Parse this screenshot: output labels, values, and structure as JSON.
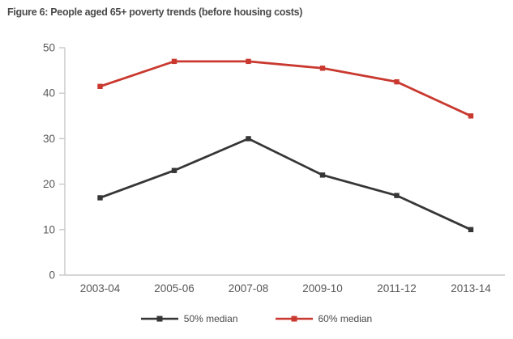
{
  "figure": {
    "title": "Figure 6: People aged 65+ poverty trends (before housing costs)"
  },
  "colors": {
    "axis": "#c8c8c8",
    "tick_label": "#58585a",
    "title_text": "#4a4a4a",
    "series_50_median": "#363636",
    "series_60_median": "#c9392f",
    "background": "#ffffff"
  },
  "legend": {
    "position": "bottom",
    "items": [
      {
        "label": "50% median",
        "color": "#363636"
      },
      {
        "label": "60% median",
        "color": "#c9392f"
      }
    ]
  },
  "chart_data": {
    "type": "line",
    "title": "Figure 6: People aged 65+ poverty trends (before housing costs)",
    "categories": [
      "2003-04",
      "2005-06",
      "2007-08",
      "2009-10",
      "2011-12",
      "2013-14"
    ],
    "series": [
      {
        "name": "50% median",
        "color": "#363636",
        "values": [
          17,
          23,
          30,
          22,
          17.5,
          10
        ]
      },
      {
        "name": "60% median",
        "color": "#c9392f",
        "values": [
          41.5,
          47,
          47,
          45.5,
          42.5,
          35
        ]
      }
    ],
    "xlabel": "",
    "ylabel": "",
    "ylim": [
      0,
      50
    ],
    "yticks": [
      0,
      10,
      20,
      30,
      40,
      50
    ],
    "grid": false,
    "legend_position": "bottom",
    "marker": "square"
  }
}
